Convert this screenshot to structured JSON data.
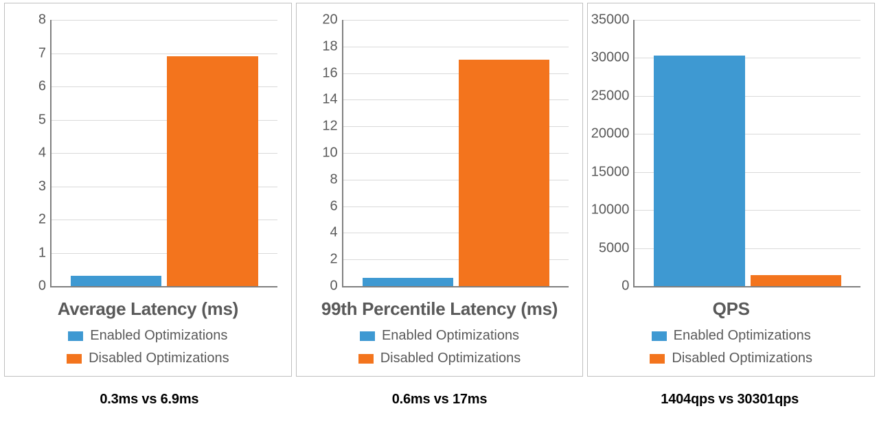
{
  "series_labels": {
    "enabled": "Enabled Optimizations",
    "disabled": "Disabled Optimizations"
  },
  "series_colors": {
    "enabled": "#3e99d2",
    "disabled": "#f3741d"
  },
  "panel_border_color": "#bfbfbf",
  "axis_color": "#7f7f7f",
  "grid_color": "#d9d9d9",
  "tick_color": "#595959",
  "title_color": "#595959",
  "legend_text_color": "#595959",
  "background_color": "#ffffff",
  "tick_fontsize": 20,
  "title_fontsize": 26,
  "legend_fontsize": 20,
  "caption_fontsize": 20,
  "bar_width_ratio": 0.9,
  "charts": [
    {
      "title": "Average Latency (ms)",
      "type": "bar",
      "ylim": [
        0,
        8
      ],
      "ytick_step": 1,
      "values": {
        "enabled": 0.3,
        "disabled": 6.9
      },
      "caption": "0.3ms vs 6.9ms"
    },
    {
      "title": "99th Percentile Latency (ms)",
      "type": "bar",
      "ylim": [
        0,
        20
      ],
      "ytick_step": 2,
      "values": {
        "enabled": 0.6,
        "disabled": 17
      },
      "caption": "0.6ms vs 17ms"
    },
    {
      "title": "QPS",
      "type": "bar",
      "ylim": [
        0,
        35000
      ],
      "ytick_step": 5000,
      "values": {
        "enabled": 30301,
        "disabled": 1404
      },
      "caption": "1404qps vs 30301qps"
    }
  ]
}
